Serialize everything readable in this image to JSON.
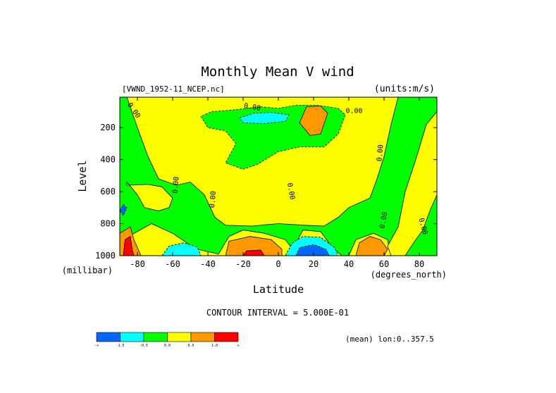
{
  "chart_data": {
    "type": "heatmap",
    "title": "Monthly Mean V wind",
    "dataset_label": "[VWND_1952-11_NCEP.nc]",
    "units_label": "(units:m/s)",
    "xlabel": "Latitude",
    "xunit": "(degrees_north)",
    "ylabel": "Level",
    "yunit": "(millibar)",
    "xlim": [
      -90,
      90
    ],
    "ylim": [
      1000,
      10
    ],
    "x_ticks": [
      -80,
      -60,
      -40,
      -20,
      0,
      20,
      40,
      60,
      80
    ],
    "y_ticks": [
      200,
      400,
      600,
      800,
      1000
    ],
    "contour_interval_text": "CONTOUR INTERVAL = 5.000E-01",
    "mean_text": "(mean) lon:0..357.5",
    "contour_labels": [
      {
        "text": "0.00",
        "lat": -83,
        "lev": 100,
        "angle": 55
      },
      {
        "text": "0.00",
        "lat": -15,
        "lev": 85,
        "angle": 10
      },
      {
        "text": "0.00",
        "lat": 43,
        "lev": 110,
        "angle": 0
      },
      {
        "text": "0.00",
        "lat": -57,
        "lev": 560,
        "angle": -85
      },
      {
        "text": "0.00",
        "lat": -36,
        "lev": 650,
        "angle": -85
      },
      {
        "text": "0.00",
        "lat": 6,
        "lev": 600,
        "angle": 80
      },
      {
        "text": "0.00",
        "lat": 59,
        "lev": 360,
        "angle": -85
      },
      {
        "text": "0.00",
        "lat": 61,
        "lev": 780,
        "angle": -80
      },
      {
        "text": "0.00",
        "lat": 81,
        "lev": 820,
        "angle": 75
      }
    ],
    "regions": [
      {
        "level": "0.5",
        "color": "#ffff00",
        "points": [
          [
            -86,
            10
          ],
          [
            -80,
            200
          ],
          [
            -74,
            380
          ],
          [
            -68,
            520
          ],
          [
            -58,
            560
          ],
          [
            -50,
            540
          ],
          [
            -42,
            620
          ],
          [
            -36,
            760
          ],
          [
            -30,
            810
          ],
          [
            -15,
            815
          ],
          [
            0,
            800
          ],
          [
            15,
            810
          ],
          [
            26,
            815
          ],
          [
            34,
            760
          ],
          [
            40,
            700
          ],
          [
            52,
            640
          ],
          [
            56,
            520
          ],
          [
            60,
            380
          ],
          [
            64,
            180
          ],
          [
            68,
            10
          ]
        ]
      },
      {
        "level": "0.5",
        "color": "#ffff00",
        "points": [
          [
            -86,
            540
          ],
          [
            -80,
            620
          ],
          [
            -76,
            700
          ],
          [
            -68,
            720
          ],
          [
            -62,
            700
          ],
          [
            -60,
            640
          ],
          [
            -66,
            570
          ],
          [
            -74,
            555
          ],
          [
            -86,
            560
          ]
        ]
      },
      {
        "level": "0.5",
        "color": "#ffff00",
        "points": [
          [
            -90,
            1000
          ],
          [
            -85,
            880
          ],
          [
            -72,
            800
          ],
          [
            -60,
            860
          ],
          [
            -52,
            920
          ],
          [
            -46,
            960
          ],
          [
            -34,
            990
          ],
          [
            -28,
            880
          ],
          [
            -20,
            840
          ],
          [
            -8,
            860
          ],
          [
            4,
            900
          ],
          [
            8,
            960
          ],
          [
            14,
            840
          ],
          [
            24,
            850
          ],
          [
            30,
            940
          ],
          [
            36,
            1000
          ]
        ]
      },
      {
        "level": "0.5",
        "color": "#ffff00",
        "points": [
          [
            40,
            1000
          ],
          [
            44,
            900
          ],
          [
            54,
            860
          ],
          [
            62,
            900
          ],
          [
            64,
            1000
          ]
        ]
      },
      {
        "level": "0.5",
        "color": "#ffff00",
        "points": [
          [
            62,
            940
          ],
          [
            68,
            820
          ],
          [
            72,
            600
          ],
          [
            78,
            400
          ],
          [
            84,
            180
          ],
          [
            90,
            100
          ],
          [
            90,
            620
          ],
          [
            86,
            720
          ],
          [
            82,
            840
          ],
          [
            78,
            900
          ],
          [
            72,
            1000
          ],
          [
            64,
            1000
          ]
        ]
      },
      {
        "level": "-0.5",
        "color": "#00ff00",
        "points": [
          [
            -44,
            130
          ],
          [
            -40,
            200
          ],
          [
            -30,
            220
          ],
          [
            -24,
            300
          ],
          [
            -30,
            420
          ],
          [
            -20,
            460
          ],
          [
            -12,
            430
          ],
          [
            0,
            350
          ],
          [
            12,
            320
          ],
          [
            26,
            320
          ],
          [
            34,
            240
          ],
          [
            38,
            120
          ],
          [
            34,
            80
          ],
          [
            22,
            60
          ],
          [
            10,
            60
          ],
          [
            0,
            80
          ],
          [
            -10,
            70
          ],
          [
            -26,
            90
          ],
          [
            -38,
            100
          ]
        ]
      },
      {
        "level": "-1.0",
        "color": "#00ffff",
        "points": [
          [
            -22,
            140
          ],
          [
            -14,
            110
          ],
          [
            -4,
            105
          ],
          [
            6,
            120
          ],
          [
            4,
            160
          ],
          [
            -8,
            175
          ],
          [
            -20,
            170
          ]
        ]
      },
      {
        "level": "-1.0",
        "color": "#00ffff",
        "points": [
          [
            -66,
            1000
          ],
          [
            -62,
            940
          ],
          [
            -54,
            920
          ],
          [
            -46,
            945
          ],
          [
            -44,
            1000
          ]
        ]
      },
      {
        "level": "-1.0",
        "color": "#00ffff",
        "points": [
          [
            4,
            1000
          ],
          [
            8,
            920
          ],
          [
            14,
            880
          ],
          [
            24,
            885
          ],
          [
            32,
            950
          ],
          [
            34,
            1000
          ]
        ]
      },
      {
        "level": "-1.5",
        "color": "#0066ff",
        "points": [
          [
            10,
            1000
          ],
          [
            12,
            950
          ],
          [
            20,
            930
          ],
          [
            27,
            960
          ],
          [
            29,
            1000
          ]
        ]
      },
      {
        "level": "1.0",
        "color": "#ff9900",
        "points": [
          [
            12,
            170
          ],
          [
            16,
            70
          ],
          [
            24,
            65
          ],
          [
            28,
            110
          ],
          [
            24,
            240
          ],
          [
            18,
            250
          ]
        ]
      },
      {
        "level": "1.0",
        "color": "#ff9900",
        "points": [
          [
            -30,
            1000
          ],
          [
            -28,
            910
          ],
          [
            -16,
            880
          ],
          [
            -4,
            900
          ],
          [
            2,
            960
          ],
          [
            2,
            1000
          ]
        ]
      },
      {
        "level": "1.0",
        "color": "#ff9900",
        "points": [
          [
            44,
            1000
          ],
          [
            46,
            920
          ],
          [
            52,
            880
          ],
          [
            58,
            900
          ],
          [
            62,
            960
          ],
          [
            60,
            1000
          ]
        ]
      },
      {
        "level": "1.0",
        "color": "#ff9900",
        "points": [
          [
            -90,
            1000
          ],
          [
            -90,
            860
          ],
          [
            -84,
            820
          ],
          [
            -82,
            900
          ],
          [
            -78,
            1000
          ]
        ]
      },
      {
        "level": "1.5",
        "color": "#ff0000",
        "points": [
          [
            -88,
            1000
          ],
          [
            -87,
            900
          ],
          [
            -84,
            880
          ],
          [
            -83,
            960
          ],
          [
            -82,
            1000
          ]
        ]
      },
      {
        "level": "1.5",
        "color": "#ff0000",
        "points": [
          [
            -20,
            1000
          ],
          [
            -18,
            970
          ],
          [
            -10,
            965
          ],
          [
            -8,
            1000
          ]
        ]
      },
      {
        "level": "-1.5",
        "color": "#0066ff",
        "points": [
          [
            -90,
            720
          ],
          [
            -88,
            680
          ],
          [
            -86,
            700
          ],
          [
            -88,
            750
          ]
        ]
      }
    ],
    "legend": {
      "colors": [
        "#0066ff",
        "#00ffff",
        "#00ff00",
        "#ffff00",
        "#ff9900",
        "#ff0000"
      ],
      "labels": [
        "-∞",
        "-1.5",
        "-0.5",
        "0.0",
        "0.5",
        "1.0",
        "∞"
      ]
    }
  }
}
